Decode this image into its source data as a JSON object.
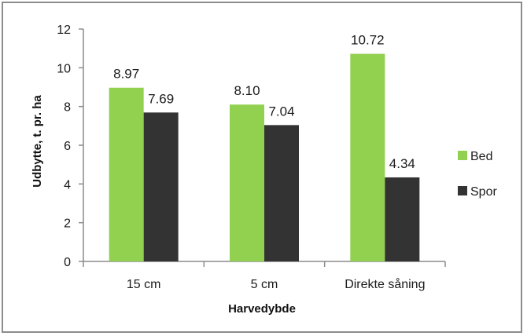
{
  "chart_data": {
    "type": "bar",
    "title": "",
    "xlabel": "Harvedybde",
    "ylabel": "Udbytte, t. pr. ha",
    "categories": [
      "15 cm",
      "5 cm",
      "Direkte såning"
    ],
    "series": [
      {
        "name": "Bed",
        "color": "#92d050",
        "values": [
          8.97,
          8.1,
          10.72
        ],
        "labels": [
          "8.97",
          "8.10",
          "10.72"
        ]
      },
      {
        "name": "Spor",
        "color": "#333333",
        "values": [
          7.69,
          7.04,
          4.34
        ],
        "labels": [
          "7.69",
          "7.04",
          "4.34"
        ]
      }
    ],
    "ylim": [
      0,
      12
    ],
    "yticks": [
      "0",
      "2",
      "4",
      "6",
      "8",
      "10",
      "12"
    ],
    "grid": false,
    "legend_position": "right"
  }
}
